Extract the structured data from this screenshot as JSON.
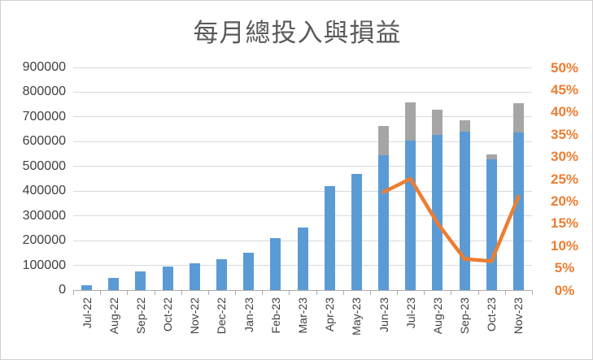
{
  "chart_data": {
    "type": "combo",
    "title": "每月總投入與損益",
    "categories": [
      "Jul-22",
      "Aug-22",
      "Sep-22",
      "Oct-22",
      "Nov-22",
      "Dec-22",
      "Jan-23",
      "Feb-23",
      "Mar-23",
      "Apr-23",
      "May-23",
      "Jun-23",
      "Jul-23",
      "Aug-23",
      "Sep-23",
      "Oct-23",
      "Nov-23"
    ],
    "series": [
      {
        "name": "blue-investment-bar",
        "type": "bar",
        "axis": "left",
        "color": "#5B9BD5",
        "values": [
          20000,
          50000,
          77000,
          96000,
          110000,
          125000,
          152000,
          209000,
          253000,
          421000,
          470000,
          545000,
          605000,
          628000,
          640000,
          528000,
          636000
        ]
      },
      {
        "name": "gray-profit-bar-segment",
        "type": "bar-stacked",
        "axis": "left",
        "color": "#A5A5A5",
        "values": [
          0,
          0,
          0,
          0,
          0,
          0,
          0,
          0,
          0,
          0,
          0,
          120000,
          155000,
          100000,
          46000,
          22000,
          119000
        ]
      },
      {
        "name": "orange-rate-line",
        "type": "line",
        "axis": "right",
        "color": "#ED7D31",
        "values": [
          null,
          null,
          null,
          null,
          null,
          null,
          null,
          null,
          null,
          null,
          null,
          22,
          25,
          15,
          7,
          6.5,
          21
        ]
      }
    ],
    "left_axis": {
      "min": 0,
      "max": 900000,
      "step": 100000,
      "tick_labels": [
        "0",
        "100000",
        "200000",
        "300000",
        "400000",
        "500000",
        "600000",
        "700000",
        "800000",
        "900000"
      ]
    },
    "right_axis": {
      "min": 0,
      "max": 50,
      "step": 5,
      "tick_labels": [
        "0%",
        "5%",
        "10%",
        "15%",
        "20%",
        "25%",
        "30%",
        "35%",
        "40%",
        "45%",
        "50%"
      ]
    },
    "gridlines": true,
    "legend": false
  },
  "colors": {
    "bar_blue": "#5B9BD5",
    "bar_gray": "#A5A5A5",
    "line_orange": "#ED7D31",
    "axis_label": "#404040",
    "right_axis_label": "#ED7D31",
    "title": "#595959",
    "gridline": "#D9D9D9",
    "axis_line": "#ADADAD",
    "background": "#FFFFFF",
    "border": "#D0CECE"
  }
}
